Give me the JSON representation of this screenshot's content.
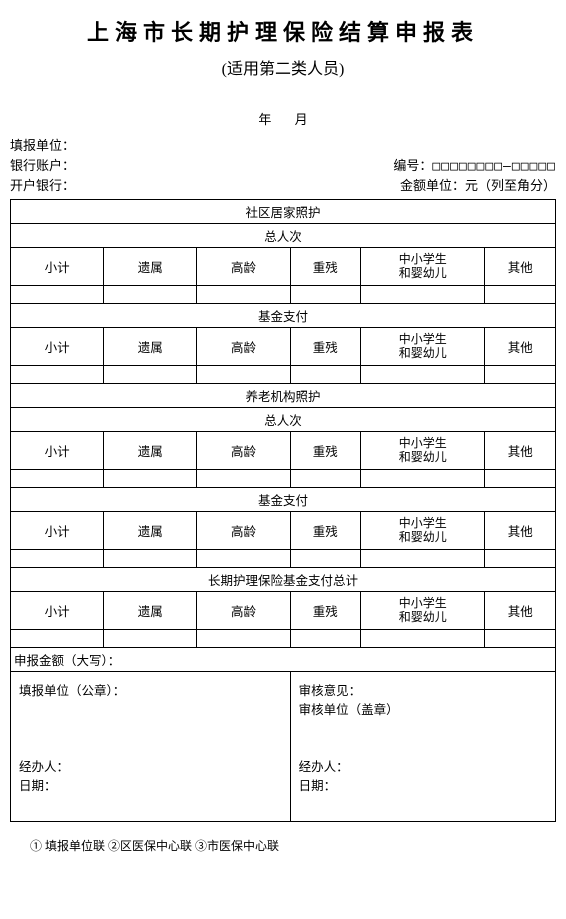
{
  "doc": {
    "title": "上海市长期护理保险结算申报表",
    "subtitle": "(适用第二类人员)",
    "date_year_label": "年",
    "date_month_label": "月",
    "filing_unit_label": "填报单位：",
    "bank_account_label": "银行账户：",
    "opening_bank_label": "开户银行：",
    "serial_label": "编号：",
    "serial_placeholder": "□□□□□□□□—□□□□□",
    "amount_unit_label": "金额单位：元（列至角分）"
  },
  "table": {
    "section1": "社区居家照护",
    "sub_people": "总人次",
    "sub_fund": "基金支付",
    "section2": "养老机构照护",
    "section3": "长期护理保险基金支付总计",
    "cols": {
      "c1": "小计",
      "c2": "遗属",
      "c3": "高龄",
      "c4": "重残",
      "c5a": "中小学生",
      "c5b": "和婴幼儿",
      "c6": "其他"
    },
    "amount_text": "申报金额（大写）：",
    "sig_left": {
      "unit": "填报单位（公章）：",
      "handler": "经办人：",
      "date": "日期："
    },
    "sig_right": {
      "opinion": "审核意见：",
      "unit": "审核单位（盖章）",
      "handler": "经办人：",
      "date": "日期："
    }
  },
  "footer": "① 填报单位联  ②区医保中心联  ③市医保中心联"
}
